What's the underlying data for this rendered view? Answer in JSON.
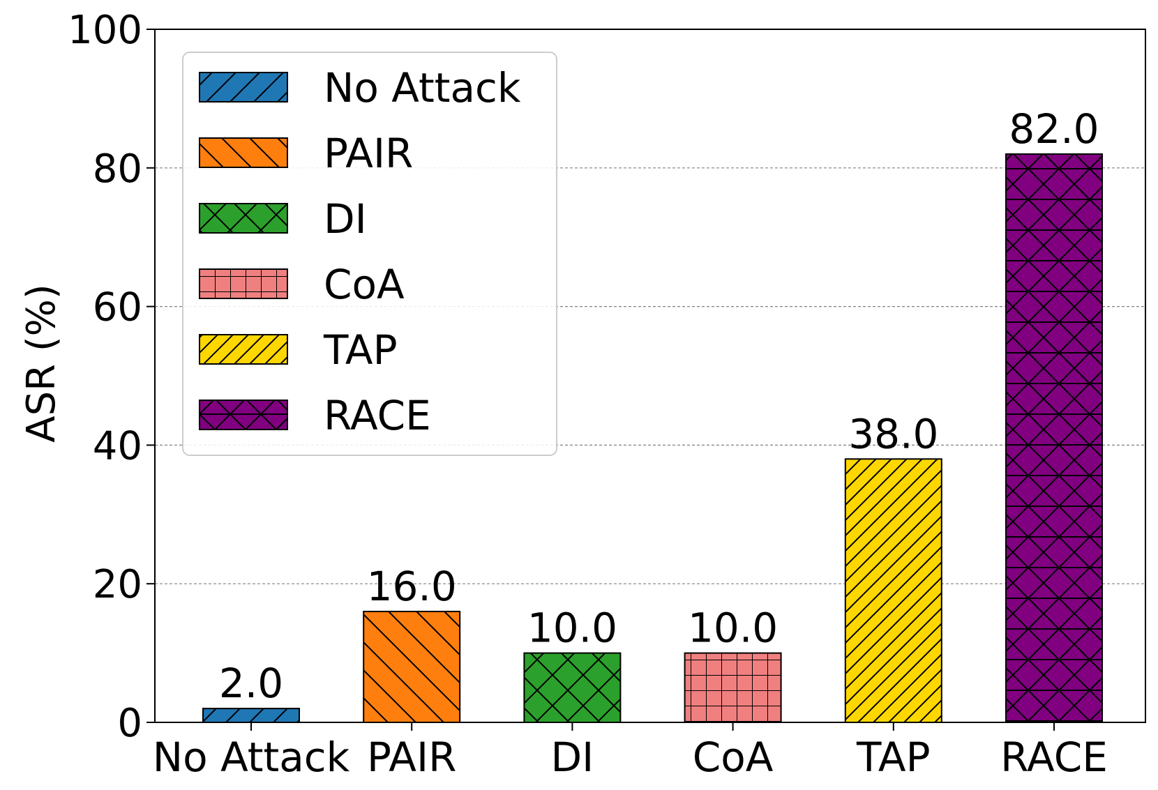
{
  "chart_data": {
    "type": "bar",
    "ylabel": "ASR (%)",
    "xlabel": "",
    "ylim": [
      0,
      100
    ],
    "yticks": [
      0,
      20,
      40,
      60,
      80,
      100
    ],
    "grid": "horizontal-dashed",
    "legend_position": "top-left",
    "categories": [
      "No Attack",
      "PAIR",
      "DI",
      "CoA",
      "TAP",
      "RACE"
    ],
    "values": [
      2.0,
      16.0,
      10.0,
      10.0,
      38.0,
      82.0
    ],
    "value_labels": [
      "2.0",
      "16.0",
      "10.0",
      "10.0",
      "38.0",
      "82.0"
    ],
    "colors": [
      "#1f77b4",
      "#ff7f0e",
      "#2ca02c",
      "#f08080",
      "#ffd700",
      "#800080"
    ],
    "hatches": [
      "diag-fwd",
      "diag-back",
      "cross",
      "grid",
      "diag-fwd-dense",
      "cross-horizontal"
    ],
    "legend": [
      "No Attack",
      "PAIR",
      "DI",
      "CoA",
      "TAP",
      "RACE"
    ]
  }
}
